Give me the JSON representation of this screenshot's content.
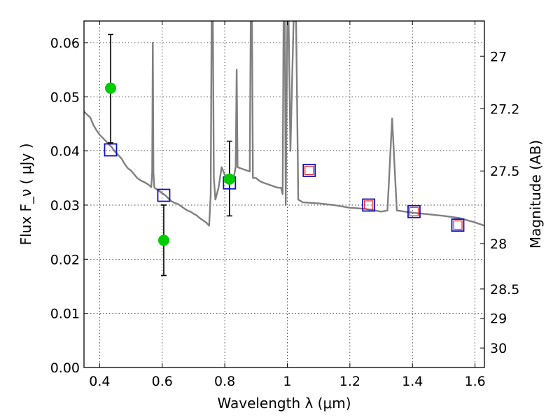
{
  "chart_data": {
    "type": "scatter",
    "title": "",
    "xlabel": "Wavelength  λ (μm)",
    "ylabel": "Flux  F_ν  ( μJy )",
    "y2label": "Magnitude (AB)",
    "xlim": [
      0.35,
      1.63
    ],
    "ylim": [
      0.0,
      0.064
    ],
    "xticks": [
      0.4,
      0.6,
      0.8,
      1.0,
      1.2,
      1.4,
      1.6
    ],
    "xtick_labels": [
      "0.4",
      "0.6",
      "0.8",
      "1",
      "1.2",
      "1.4",
      "1.6"
    ],
    "yticks": [
      0.0,
      0.01,
      0.02,
      0.03,
      0.04,
      0.05,
      0.06
    ],
    "ytick_labels": [
      "0.00",
      "0.01",
      "0.02",
      "0.03",
      "0.04",
      "0.05",
      "0.06"
    ],
    "y2ticks": [
      {
        "label": "27",
        "flux": 0.0575
      },
      {
        "label": "27.2",
        "flux": 0.0478
      },
      {
        "label": "27.5",
        "flux": 0.0363
      },
      {
        "label": "28",
        "flux": 0.0229
      },
      {
        "label": "28.5",
        "flux": 0.0145
      },
      {
        "label": "29",
        "flux": 0.0091
      },
      {
        "label": "30",
        "flux": 0.0036
      }
    ],
    "grid": true,
    "colors": {
      "model": "#808080",
      "observed": "#00cc00",
      "errorbar": "#000000",
      "model_box": "#1111bb",
      "inner_box": "#ee2222"
    },
    "series": [
      {
        "kind": "line",
        "points": [
          [
            0.35,
            0.0473
          ],
          [
            0.36,
            0.0467
          ],
          [
            0.37,
            0.0462
          ],
          [
            0.38,
            0.0448
          ],
          [
            0.39,
            0.0438
          ],
          [
            0.4,
            0.043
          ],
          [
            0.41,
            0.0424
          ],
          [
            0.42,
            0.0418
          ],
          [
            0.43,
            0.0412
          ],
          [
            0.44,
            0.0406
          ],
          [
            0.45,
            0.0398
          ],
          [
            0.46,
            0.0392
          ],
          [
            0.47,
            0.0386
          ],
          [
            0.48,
            0.0376
          ],
          [
            0.49,
            0.0368
          ],
          [
            0.5,
            0.0364
          ],
          [
            0.51,
            0.0357
          ],
          [
            0.52,
            0.035
          ],
          [
            0.53,
            0.0346
          ],
          [
            0.54,
            0.0343
          ],
          [
            0.55,
            0.034
          ],
          [
            0.56,
            0.0336
          ],
          [
            0.565,
            0.0333
          ],
          [
            0.568,
            0.036
          ],
          [
            0.57,
            0.06
          ],
          [
            0.572,
            0.036
          ],
          [
            0.575,
            0.0332
          ],
          [
            0.58,
            0.033
          ],
          [
            0.59,
            0.0326
          ],
          [
            0.6,
            0.0322
          ],
          [
            0.61,
            0.0318
          ],
          [
            0.62,
            0.0312
          ],
          [
            0.63,
            0.0307
          ],
          [
            0.64,
            0.0304
          ],
          [
            0.65,
            0.0302
          ],
          [
            0.66,
            0.0298
          ],
          [
            0.67,
            0.0294
          ],
          [
            0.68,
            0.029
          ],
          [
            0.69,
            0.0288
          ],
          [
            0.7,
            0.0284
          ],
          [
            0.71,
            0.0281
          ],
          [
            0.72,
            0.0276
          ],
          [
            0.73,
            0.0272
          ],
          [
            0.74,
            0.0268
          ],
          [
            0.75,
            0.0262
          ],
          [
            0.755,
            0.032
          ],
          [
            0.758,
            0.064
          ],
          [
            0.762,
            0.064
          ],
          [
            0.765,
            0.035
          ],
          [
            0.77,
            0.031
          ],
          [
            0.78,
            0.0332
          ],
          [
            0.79,
            0.037
          ],
          [
            0.8,
            0.0356
          ],
          [
            0.81,
            0.035
          ],
          [
            0.82,
            0.0348
          ],
          [
            0.83,
            0.0355
          ],
          [
            0.835,
            0.037
          ],
          [
            0.838,
            0.055
          ],
          [
            0.841,
            0.037
          ],
          [
            0.85,
            0.0368
          ],
          [
            0.86,
            0.0366
          ],
          [
            0.87,
            0.0364
          ],
          [
            0.88,
            0.0362
          ],
          [
            0.883,
            0.064
          ],
          [
            0.887,
            0.064
          ],
          [
            0.89,
            0.035
          ],
          [
            0.9,
            0.035
          ],
          [
            0.91,
            0.0345
          ],
          [
            0.92,
            0.0342
          ],
          [
            0.93,
            0.034
          ],
          [
            0.94,
            0.0338
          ],
          [
            0.95,
            0.0336
          ],
          [
            0.96,
            0.0334
          ],
          [
            0.97,
            0.0332
          ],
          [
            0.98,
            0.0332
          ],
          [
            0.985,
            0.032
          ],
          [
            0.988,
            0.064
          ],
          [
            0.992,
            0.064
          ],
          [
            0.995,
            0.03
          ],
          [
            1.0,
            0.064
          ],
          [
            1.004,
            0.064
          ],
          [
            1.01,
            0.04
          ],
          [
            1.02,
            0.064
          ],
          [
            1.028,
            0.064
          ],
          [
            1.035,
            0.031
          ],
          [
            1.05,
            0.0305
          ],
          [
            1.1,
            0.0303
          ],
          [
            1.15,
            0.03
          ],
          [
            1.2,
            0.0295
          ],
          [
            1.25,
            0.0293
          ],
          [
            1.3,
            0.0288
          ],
          [
            1.32,
            0.029
          ],
          [
            1.335,
            0.046
          ],
          [
            1.35,
            0.029
          ],
          [
            1.4,
            0.0286
          ],
          [
            1.45,
            0.0283
          ],
          [
            1.5,
            0.028
          ],
          [
            1.55,
            0.0276
          ],
          [
            1.6,
            0.0268
          ],
          [
            1.63,
            0.0262
          ]
        ]
      },
      {
        "kind": "points",
        "points": [
          {
            "x": 0.435,
            "y": 0.0516,
            "err_low": 0.0415,
            "err_high": 0.0615
          },
          {
            "x": 0.605,
            "y": 0.0235,
            "err_low": 0.017,
            "err_high": 0.03
          },
          {
            "x": 0.815,
            "y": 0.0348,
            "err_low": 0.028,
            "err_high": 0.0418
          }
        ]
      },
      {
        "kind": "boxes",
        "points": [
          {
            "x": 0.435,
            "y": 0.0402,
            "inner": false
          },
          {
            "x": 0.605,
            "y": 0.0318,
            "inner": false
          },
          {
            "x": 0.815,
            "y": 0.0341,
            "inner": false
          },
          {
            "x": 1.07,
            "y": 0.0364,
            "inner": true
          },
          {
            "x": 1.26,
            "y": 0.03,
            "inner": true
          },
          {
            "x": 1.405,
            "y": 0.0288,
            "inner": true
          },
          {
            "x": 1.545,
            "y": 0.0263,
            "inner": true
          }
        ]
      }
    ]
  }
}
